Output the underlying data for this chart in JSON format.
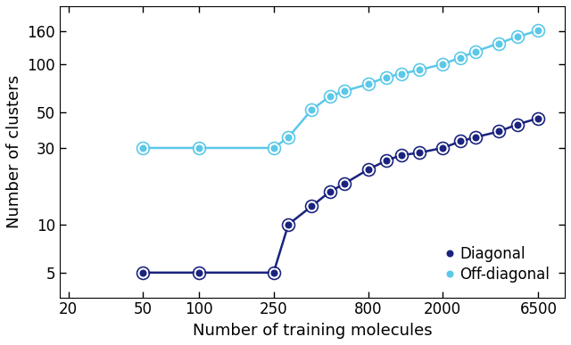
{
  "diagonal_x": [
    50,
    100,
    250,
    300,
    400,
    500,
    600,
    800,
    1000,
    1200,
    1500,
    2000,
    2500,
    3000,
    4000,
    5000,
    6500
  ],
  "diagonal_y": [
    5,
    5,
    5,
    10,
    13,
    16,
    18,
    22,
    25,
    27,
    28,
    30,
    33,
    35,
    38,
    42,
    46
  ],
  "offdiag_x": [
    50,
    100,
    250,
    300,
    400,
    500,
    600,
    800,
    1000,
    1200,
    1500,
    2000,
    2500,
    3000,
    4000,
    5000,
    6500
  ],
  "offdiag_y": [
    30,
    30,
    30,
    35,
    52,
    63,
    68,
    75,
    83,
    87,
    92,
    100,
    110,
    120,
    135,
    148,
    162
  ],
  "diagonal_color": "#1a237e",
  "offdiag_color": "#5bc8e8",
  "xlabel": "Number of training molecules",
  "ylabel": "Number of clusters",
  "xticks": [
    20,
    50,
    100,
    250,
    800,
    2000,
    6500
  ],
  "yticks": [
    5,
    10,
    30,
    50,
    100,
    160
  ],
  "xlim": [
    18,
    9000
  ],
  "ylim": [
    3.5,
    230
  ],
  "legend_diagonal": "Diagonal",
  "legend_offdiag": "Off-diagonal",
  "marker_size": 7,
  "linewidth": 1.8,
  "xlabel_fontsize": 13,
  "ylabel_fontsize": 13,
  "tick_labelsize": 12,
  "legend_fontsize": 12
}
